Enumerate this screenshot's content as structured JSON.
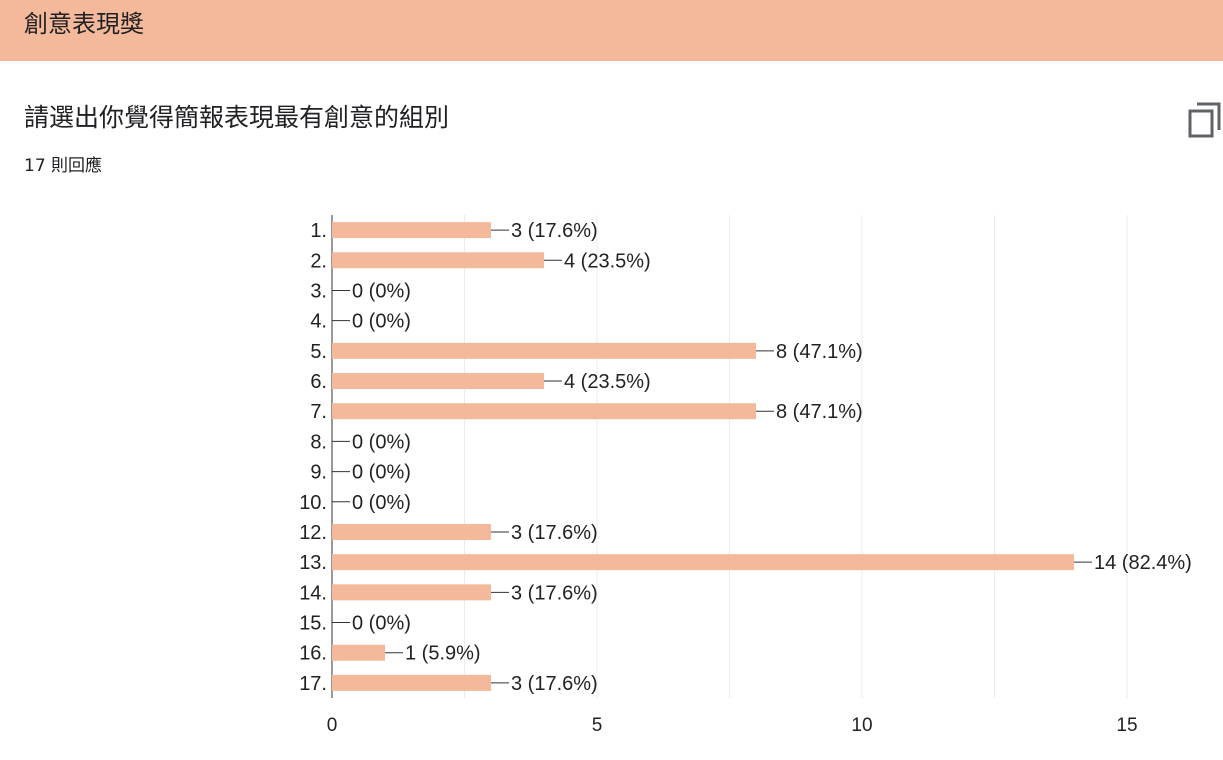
{
  "header": {
    "title": "創意表現獎"
  },
  "question": {
    "title": "請選出你覺得簡報表現最有創意的組別",
    "response_count": "17 則回應"
  },
  "icons": {
    "copy": "copy-icon"
  },
  "colors": {
    "accent": "#f4b99a",
    "bar": "#f4b99a",
    "grid": "#ebebeb",
    "axis": "#333333"
  },
  "chart_data": {
    "type": "bar",
    "orientation": "horizontal",
    "title": "",
    "xlabel": "",
    "ylabel": "",
    "categories": [
      "1.",
      "2.",
      "3.",
      "4.",
      "5.",
      "6.",
      "7.",
      "8.",
      "9.",
      "10.",
      "12.",
      "13.",
      "14.",
      "15.",
      "16.",
      "17."
    ],
    "values": [
      3,
      4,
      0,
      0,
      8,
      4,
      8,
      0,
      0,
      0,
      3,
      14,
      3,
      0,
      1,
      3
    ],
    "data_labels": [
      "3 (17.6%)",
      "4 (23.5%)",
      "0 (0%)",
      "0 (0%)",
      "8 (47.1%)",
      "4 (23.5%)",
      "8 (47.1%)",
      "0 (0%)",
      "0 (0%)",
      "0 (0%)",
      "3 (17.6%)",
      "14 (82.4%)",
      "3 (17.6%)",
      "0 (0%)",
      "1 (5.9%)",
      "3 (17.6%)"
    ],
    "xlim": [
      0,
      15
    ],
    "xticks": [
      0,
      5,
      10,
      15
    ],
    "xtick_labels": [
      "0",
      "5",
      "10",
      "15"
    ],
    "grid": true,
    "legend": "none"
  }
}
